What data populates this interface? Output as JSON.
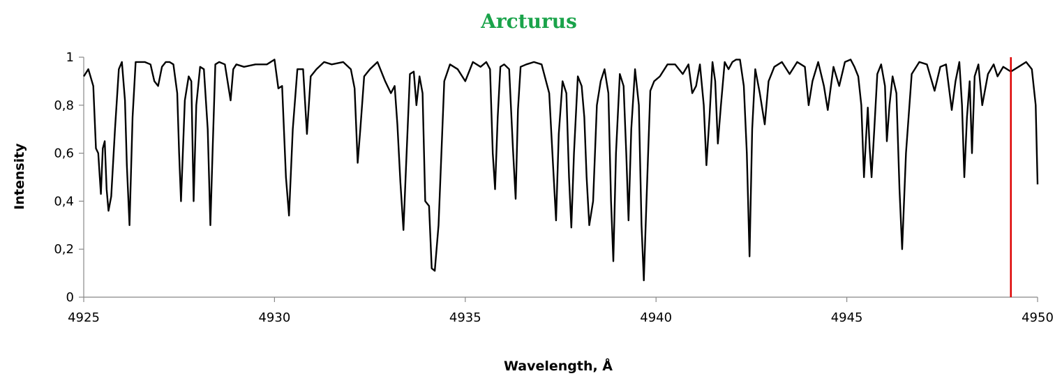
{
  "chart_data": {
    "type": "line",
    "title": "Arcturus",
    "title_color": "#1aa34a",
    "xlabel": "Wavelength, Å",
    "ylabel": "Intensity",
    "xlim": [
      4925,
      4950
    ],
    "ylim": [
      0,
      1
    ],
    "x_ticks": [
      4925,
      4930,
      4935,
      4940,
      4945,
      4950
    ],
    "x_tick_labels": [
      "4925",
      "4930",
      "4935",
      "4940",
      "4945",
      "4950"
    ],
    "y_ticks": [
      0,
      0.2,
      0.4,
      0.6,
      0.8,
      1
    ],
    "y_tick_labels": [
      "0",
      "0,2",
      "0,4",
      "0,6",
      "0,8",
      "1"
    ],
    "grid": false,
    "legend": "none",
    "line_color": "#000000",
    "marker_line": {
      "x": 4949.3,
      "color": "#dd0000"
    },
    "series": [
      {
        "x": [
          4925.0,
          4925.12,
          4925.25,
          4925.32,
          4925.38,
          4925.42,
          4925.45,
          4925.5,
          4925.55,
          4925.6,
          4925.65,
          4925.72,
          4925.82,
          4925.92,
          4926.0,
          4926.08,
          4926.13,
          4926.2,
          4926.28,
          4926.36,
          4926.45,
          4926.6,
          4926.75,
          4926.85,
          4926.95,
          4927.05,
          4927.15,
          4927.25,
          4927.35,
          4927.45,
          4927.5,
          4927.55,
          4927.65,
          4927.75,
          4927.82,
          4927.88,
          4927.95,
          4928.05,
          4928.15,
          4928.25,
          4928.32,
          4928.38,
          4928.45,
          4928.55,
          4928.7,
          4928.85,
          4928.92,
          4929.0,
          4929.2,
          4929.5,
          4929.8,
          4930.0,
          4930.1,
          4930.2,
          4930.3,
          4930.38,
          4930.48,
          4930.6,
          4930.75,
          4930.85,
          4930.95,
          4931.1,
          4931.3,
          4931.5,
          4931.8,
          4932.0,
          4932.1,
          4932.18,
          4932.25,
          4932.35,
          4932.5,
          4932.7,
          4932.9,
          4933.05,
          4933.15,
          4933.22,
          4933.3,
          4933.38,
          4933.45,
          4933.55,
          4933.65,
          4933.72,
          4933.8,
          4933.88,
          4933.95,
          4934.05,
          4934.12,
          4934.2,
          4934.3,
          4934.45,
          4934.6,
          4934.8,
          4935.0,
          4935.2,
          4935.4,
          4935.55,
          4935.65,
          4935.72,
          4935.78,
          4935.85,
          4935.92,
          4936.02,
          4936.15,
          4936.25,
          4936.32,
          4936.38,
          4936.45,
          4936.6,
          4936.8,
          4937.0,
          4937.2,
          4937.3,
          4937.38,
          4937.45,
          4937.55,
          4937.65,
          4937.72,
          4937.78,
          4937.85,
          4937.95,
          4938.05,
          4938.12,
          4938.18,
          4938.25,
          4938.35,
          4938.45,
          4938.55,
          4938.65,
          4938.75,
          4938.82,
          4938.88,
          4938.95,
          4939.05,
          4939.15,
          4939.22,
          4939.28,
          4939.35,
          4939.45,
          4939.55,
          4939.62,
          4939.68,
          4939.75,
          4939.85,
          4939.95,
          4940.1,
          4940.3,
          4940.5,
          4940.7,
          4940.85,
          4940.95,
          4941.05,
          4941.15,
          4941.25,
          4941.32,
          4941.4,
          4941.48,
          4941.55,
          4941.62,
          4941.7,
          4941.8,
          4941.9,
          4942.0,
          4942.1,
          4942.2,
          4942.3,
          4942.38,
          4942.45,
          4942.52,
          4942.6,
          4942.72,
          4942.85,
          4942.95,
          4943.1,
          4943.3,
          4943.5,
          4943.7,
          4943.9,
          4944.0,
          4944.1,
          4944.25,
          4944.4,
          4944.5,
          4944.65,
          4944.8,
          4944.95,
          4945.1,
          4945.2,
          4945.3,
          4945.38,
          4945.45,
          4945.5,
          4945.55,
          4945.6,
          4945.65,
          4945.72,
          4945.8,
          4945.9,
          4946.0,
          4946.05,
          4946.12,
          4946.2,
          4946.3,
          4946.38,
          4946.45,
          4946.55,
          4946.7,
          4946.9,
          4947.1,
          4947.3,
          4947.45,
          4947.6,
          4947.75,
          4947.85,
          4947.95,
          4948.02,
          4948.08,
          4948.15,
          4948.22,
          4948.28,
          4948.35,
          4948.45,
          4948.55,
          4948.7,
          4948.85,
          4948.95,
          4949.1,
          4949.3,
          4949.5,
          4949.7,
          4949.85,
          4949.95,
          4950.0
        ],
        "y": [
          0.92,
          0.95,
          0.88,
          0.62,
          0.6,
          0.5,
          0.43,
          0.62,
          0.65,
          0.45,
          0.36,
          0.42,
          0.7,
          0.95,
          0.98,
          0.82,
          0.55,
          0.3,
          0.75,
          0.98,
          0.98,
          0.98,
          0.97,
          0.9,
          0.88,
          0.96,
          0.98,
          0.98,
          0.97,
          0.85,
          0.6,
          0.4,
          0.82,
          0.92,
          0.9,
          0.4,
          0.8,
          0.96,
          0.95,
          0.7,
          0.3,
          0.62,
          0.97,
          0.98,
          0.97,
          0.82,
          0.95,
          0.97,
          0.96,
          0.97,
          0.97,
          0.99,
          0.87,
          0.88,
          0.5,
          0.34,
          0.7,
          0.95,
          0.95,
          0.68,
          0.92,
          0.95,
          0.98,
          0.97,
          0.98,
          0.95,
          0.87,
          0.56,
          0.7,
          0.92,
          0.95,
          0.98,
          0.9,
          0.85,
          0.88,
          0.72,
          0.48,
          0.28,
          0.55,
          0.93,
          0.94,
          0.8,
          0.92,
          0.85,
          0.4,
          0.38,
          0.12,
          0.11,
          0.3,
          0.9,
          0.97,
          0.95,
          0.9,
          0.98,
          0.96,
          0.98,
          0.95,
          0.6,
          0.45,
          0.75,
          0.96,
          0.97,
          0.95,
          0.62,
          0.41,
          0.78,
          0.96,
          0.97,
          0.98,
          0.97,
          0.85,
          0.55,
          0.32,
          0.68,
          0.9,
          0.85,
          0.5,
          0.29,
          0.6,
          0.92,
          0.88,
          0.75,
          0.5,
          0.3,
          0.4,
          0.8,
          0.9,
          0.95,
          0.85,
          0.4,
          0.15,
          0.6,
          0.93,
          0.88,
          0.6,
          0.32,
          0.7,
          0.95,
          0.8,
          0.3,
          0.07,
          0.4,
          0.86,
          0.9,
          0.92,
          0.97,
          0.97,
          0.93,
          0.97,
          0.85,
          0.88,
          0.97,
          0.8,
          0.55,
          0.75,
          0.98,
          0.9,
          0.64,
          0.8,
          0.98,
          0.95,
          0.98,
          0.99,
          0.99,
          0.88,
          0.6,
          0.17,
          0.7,
          0.95,
          0.85,
          0.72,
          0.9,
          0.96,
          0.98,
          0.93,
          0.98,
          0.96,
          0.8,
          0.9,
          0.98,
          0.88,
          0.78,
          0.96,
          0.88,
          0.98,
          0.99,
          0.96,
          0.92,
          0.8,
          0.5,
          0.65,
          0.79,
          0.62,
          0.5,
          0.7,
          0.93,
          0.97,
          0.88,
          0.65,
          0.8,
          0.92,
          0.85,
          0.45,
          0.2,
          0.6,
          0.93,
          0.98,
          0.97,
          0.86,
          0.96,
          0.97,
          0.78,
          0.9,
          0.98,
          0.8,
          0.5,
          0.75,
          0.9,
          0.6,
          0.92,
          0.97,
          0.8,
          0.93,
          0.97,
          0.92,
          0.96,
          0.94,
          0.96,
          0.98,
          0.95,
          0.8,
          0.47
        ]
      }
    ]
  }
}
